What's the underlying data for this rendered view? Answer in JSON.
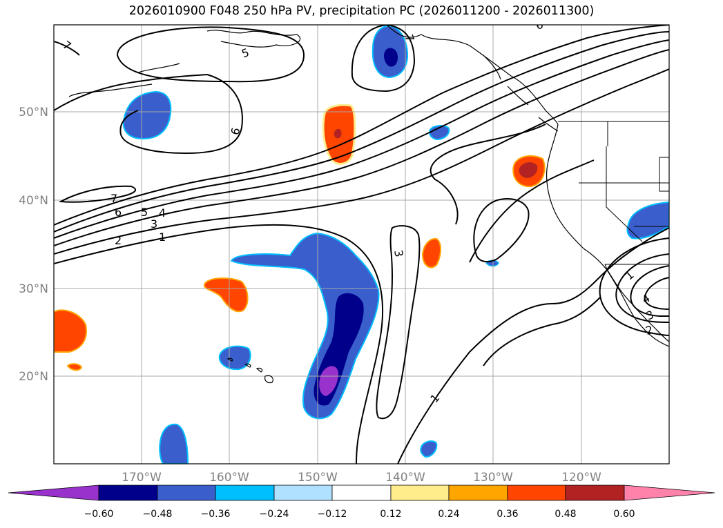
{
  "title": "2026010900 F048 250 hPa PV, precipitation PC (2026011200 - 2026011300)",
  "map": {
    "lat_labels": [
      "50°N",
      "40°N",
      "30°N",
      "20°N"
    ],
    "lon_labels": [
      "170°W",
      "160°W",
      "150°W",
      "140°W",
      "130°W",
      "120°W"
    ]
  },
  "contour_labels": [
    "7",
    "5",
    "6",
    "7",
    "6",
    "5",
    "4",
    "3",
    "2",
    "1",
    "3",
    "1",
    "7",
    "6",
    "1",
    "4",
    "3",
    "2"
  ],
  "colorbar": {
    "ticks": [
      "−0.60",
      "−0.48",
      "−0.36",
      "−0.24",
      "−0.12",
      "0.12",
      "0.24",
      "0.36",
      "0.48",
      "0.60"
    ],
    "colors": [
      "#9932cc",
      "#00008b",
      "#3a5fcd",
      "#00bfff",
      "#b0e2ff",
      "#ffffff",
      "#ffec8b",
      "#ffa500",
      "#ff4500",
      "#b22222",
      "#ff82ab"
    ]
  },
  "palette": {
    "land_line": "#000000",
    "contour": "#000000",
    "grid": "#a8a8a8"
  }
}
